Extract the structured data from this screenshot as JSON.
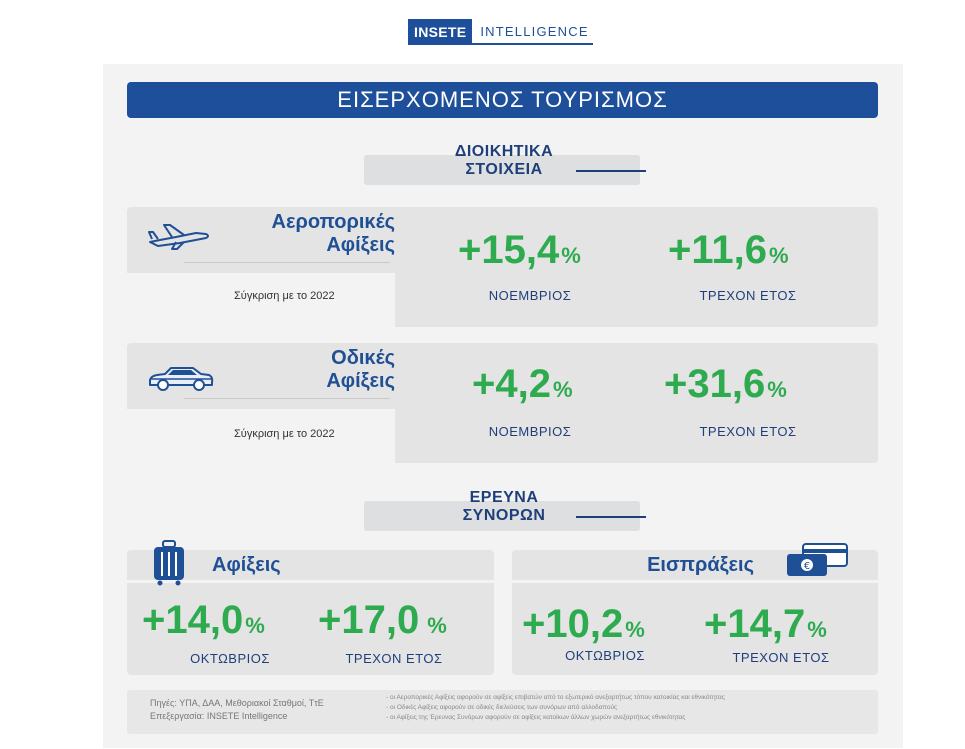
{
  "header": {
    "logo_brand": "INSETE",
    "logo_text": "INTELLIGENCE"
  },
  "title": "ΕΙΣΕΡΧΟΜΕΝΟΣ ΤΟΥΡΙΣΜΟΣ",
  "admin": {
    "heading_line1": "ΔΙΟΙΚΗΤΙΚΑ",
    "heading_line2": "ΣΤΟΙΧΕΙΑ",
    "air": {
      "title_line1": "Αεροπορικές",
      "title_line2": "Αφίξεις",
      "comparison": "Σύγκριση με το 2022",
      "month_value": "+15,4",
      "month_label": "ΝΟΕΜΒΡΙΟΣ",
      "ytd_value": "+11,6",
      "ytd_label": "ΤΡΕΧΟΝ ΕΤΟΣ",
      "icon": "airplane-icon"
    },
    "road": {
      "title_line1": "Οδικές",
      "title_line2": "Αφίξεις",
      "comparison": "Σύγκριση με το 2022",
      "month_value": "+4,2",
      "month_label": "ΝΟΕΜΒΡΙΟΣ",
      "ytd_value": "+31,6",
      "ytd_label": "ΤΡΕΧΟΝ ΕΤΟΣ",
      "icon": "car-icon"
    }
  },
  "survey": {
    "heading_line1": "ΕΡΕΥΝΑ",
    "heading_line2": "ΣΥΝΟΡΩΝ",
    "arrivals": {
      "title": "Αφίξεις",
      "month_value": "+14,0",
      "month_label": "ΟΚΤΩΒΡΙΟΣ",
      "ytd_value": "+17,0",
      "ytd_label": "ΤΡΕΧΟΝ ΕΤΟΣ",
      "icon": "suitcase-icon"
    },
    "receipts": {
      "title": "Εισπράξεις",
      "month_value": "+10,2",
      "month_label": "ΟΚΤΩΒΡΙΟΣ",
      "ytd_value": "+14,7",
      "ytd_label": "ΤΡΕΧΟΝ ΕΤΟΣ",
      "icon": "money-card-icon"
    }
  },
  "pct_sign": "%",
  "footer": {
    "sources": "Πηγές: ΥΠΑ, ΔΑΑ, Μεθοριακοί Σταθμοί, ΤτΕ",
    "processing": "Επεξεργασία: INSETE Intelligence",
    "note1": "- οι Αεροπορικές Αφίξεις αφορούν σε αφίξεις επιβατών από το εξωτερικό ανεξαρτήτως τόπου κατοικίας και εθνικότητας",
    "note2": "- οι Οδικές Αφίξεις αφορούν σε οδικές διελεύσεις των συνόρων από αλλοδαπούς",
    "note3": "- οι Αφίξεις της Έρευνας Συνόρων αφορούν σε αφίξεις κατοίκων άλλων χωρών ανεξαρτήτως εθνικότητας"
  },
  "colors": {
    "navy": "#1e4f9a",
    "green": "#2eaa4f",
    "panel": "#e4e4e5"
  }
}
